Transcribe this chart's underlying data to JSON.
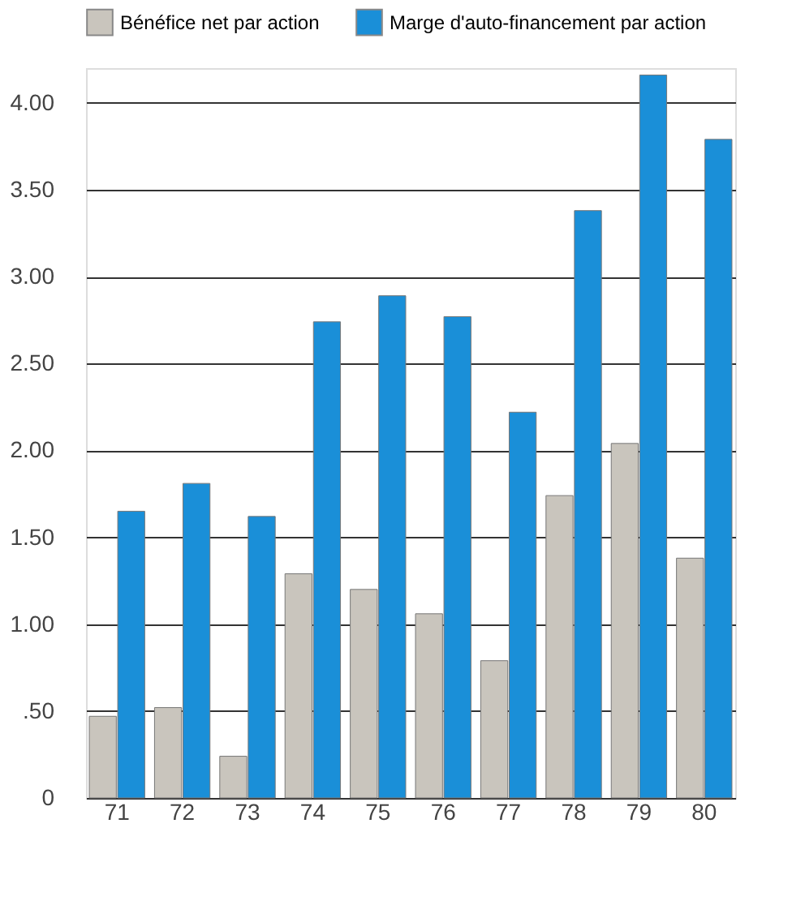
{
  "chart_data": {
    "type": "bar",
    "categories": [
      "71",
      "72",
      "73",
      "74",
      "75",
      "76",
      "77",
      "78",
      "79",
      "80"
    ],
    "series": [
      {
        "name": "Bénéfice net par action",
        "color": "#c9c5bd",
        "values": [
          0.47,
          0.52,
          0.24,
          1.29,
          1.2,
          1.06,
          0.79,
          1.74,
          2.04,
          1.38
        ]
      },
      {
        "name": "Marge d'auto-financement par action",
        "color": "#1a8fd8",
        "values": [
          1.65,
          1.81,
          1.62,
          2.74,
          2.89,
          2.77,
          2.22,
          3.38,
          4.16,
          3.79
        ]
      }
    ],
    "ylim": [
      0,
      4.2
    ],
    "yticks": [
      {
        "value": 0,
        "label": "0"
      },
      {
        "value": 0.5,
        "label": ".50"
      },
      {
        "value": 1,
        "label": "1.00"
      },
      {
        "value": 1.5,
        "label": "1.50"
      },
      {
        "value": 2,
        "label": "2.00"
      },
      {
        "value": 2.5,
        "label": "2.50"
      },
      {
        "value": 3,
        "label": "3.00"
      },
      {
        "value": 3.5,
        "label": "3.50"
      },
      {
        "value": 4,
        "label": "4.00"
      }
    ],
    "grid": "y",
    "legend": "top"
  }
}
